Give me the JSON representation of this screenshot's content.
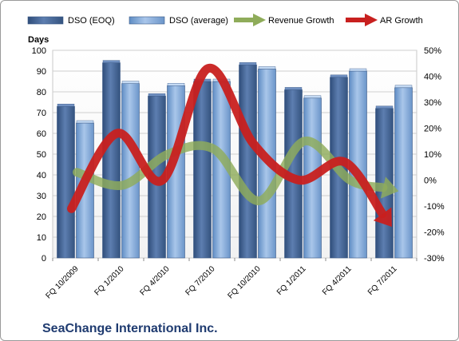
{
  "chart_data": {
    "type": "bar",
    "title": "",
    "company_label": "SeaChange International Inc.",
    "ylabel": "Days",
    "ylim": [
      0,
      100
    ],
    "yticks": [
      0,
      10,
      20,
      30,
      40,
      50,
      60,
      70,
      80,
      90,
      100
    ],
    "y2lim": [
      -30,
      50
    ],
    "y2ticks": [
      "-30%",
      "-20%",
      "-10%",
      "0%",
      "10%",
      "20%",
      "30%",
      "40%",
      "50%"
    ],
    "y2tick_values": [
      -30,
      -20,
      -10,
      0,
      10,
      20,
      30,
      40,
      50
    ],
    "categories": [
      "FQ 10/2009",
      "FQ 1/2010",
      "FQ 4/2010",
      "FQ 7/2010",
      "FQ 10/2010",
      "FQ 1/2011",
      "FQ 4/2011",
      "FQ 7/2011"
    ],
    "legend_position": "top",
    "grid": true,
    "bar_series": [
      {
        "name": "DSO (EOQ)",
        "values": [
          73,
          94,
          78,
          85,
          93,
          81,
          87,
          72
        ],
        "color": "#4a6a9a"
      },
      {
        "name": "DSO (average)",
        "values": [
          65,
          84,
          83,
          85,
          91,
          77,
          90,
          82
        ],
        "color": "#7fa6d6"
      }
    ],
    "line_series": [
      {
        "name": "Revenue Growth",
        "values": [
          3,
          -2,
          10,
          12,
          -8,
          15,
          0,
          -4
        ],
        "color": "#8fac5a",
        "axis": "right"
      },
      {
        "name": "AR Growth",
        "values": [
          -11,
          18,
          0,
          43,
          14,
          0,
          7,
          -17
        ],
        "color": "#c8201f",
        "axis": "right"
      }
    ]
  }
}
